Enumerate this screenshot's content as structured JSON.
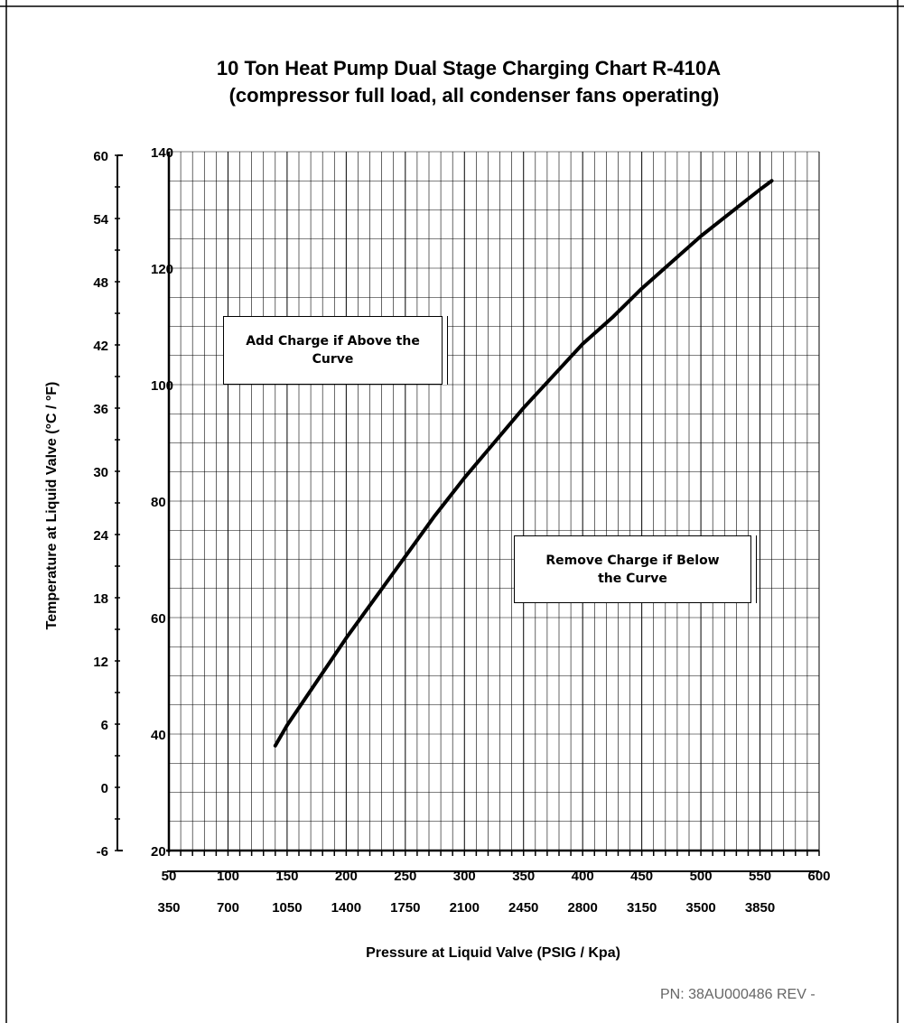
{
  "chart_data": {
    "type": "line",
    "title": "10 Ton Heat Pump Dual Stage Charging Chart R-410A",
    "subtitle": "(compressor full load, all condenser fans operating)",
    "xlabel": "Pressure at Liquid Valve  (PSIG / Kpa)",
    "ylabel": "Temperature at Liquid Valve  (°C / °F)",
    "x_primary": {
      "unit": "PSIG",
      "range": [
        50,
        600
      ],
      "ticks": [
        "50",
        "100",
        "150",
        "200",
        "250",
        "300",
        "350",
        "400",
        "450",
        "500",
        "550",
        "600"
      ]
    },
    "x_secondary": {
      "unit": "Kpa",
      "ticks": [
        "350",
        "700",
        "1050",
        "1400",
        "1750",
        "2100",
        "2450",
        "2800",
        "3150",
        "3500",
        "3850"
      ]
    },
    "y_primary": {
      "unit": "°F",
      "range": [
        20,
        140
      ],
      "ticks": [
        "140",
        "120",
        "100",
        "80",
        "60",
        "40",
        "20"
      ]
    },
    "y_secondary": {
      "unit": "°C",
      "ticks": [
        "60",
        "54",
        "48",
        "42",
        "36",
        "30",
        "24",
        "18",
        "12",
        "6",
        "0",
        "-6"
      ]
    },
    "grid": true,
    "series": [
      {
        "x": [
          140,
          150,
          175,
          200,
          225,
          250,
          275,
          300,
          325,
          350,
          375,
          400,
          425,
          450,
          475,
          500,
          525,
          550,
          560
        ],
        "y": [
          38,
          41.5,
          49,
          56.5,
          63.5,
          70.5,
          77.5,
          84,
          90,
          96,
          101.5,
          107,
          111.5,
          116.5,
          121,
          125.5,
          129.5,
          133.5,
          135
        ]
      }
    ],
    "annotations": [
      {
        "text": "Add Charge if Above the Curve"
      },
      {
        "text": "Remove Charge if Below the Curve"
      }
    ]
  },
  "footer": {
    "part_number": "PN:  38AU000486 REV  -"
  }
}
